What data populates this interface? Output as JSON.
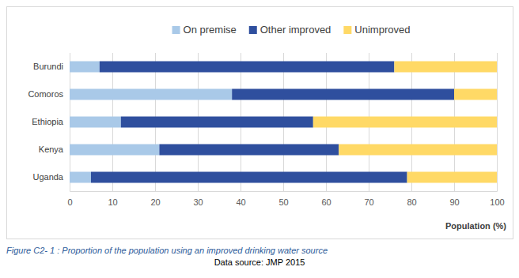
{
  "chart_data": {
    "type": "bar",
    "orientation": "horizontal",
    "stacked": true,
    "grid": true,
    "legend": "top",
    "x_label": "Population (%)",
    "annotations": [
      "Figure C2- 1 : Proportion of the population using an improved drinking water source",
      "Data source: JMP 2015"
    ],
    "categories": [
      "Burundi",
      "Comoros",
      "Ethiopia",
      "Kenya",
      "Uganda"
    ],
    "series": [
      {
        "name": "On premise",
        "color": "#a9c9e8",
        "values": [
          7,
          38,
          12,
          21,
          5
        ]
      },
      {
        "name": "Other improved",
        "color": "#2f4f9e",
        "values": [
          69,
          52,
          45,
          42,
          74
        ]
      },
      {
        "name": "Unimproved",
        "color": "#ffd966",
        "values": [
          24,
          10,
          43,
          37,
          21
        ]
      }
    ],
    "xlim": [
      0,
      100
    ],
    "xticks": [
      0,
      10,
      20,
      30,
      40,
      50,
      60,
      70,
      80,
      90,
      100
    ]
  }
}
